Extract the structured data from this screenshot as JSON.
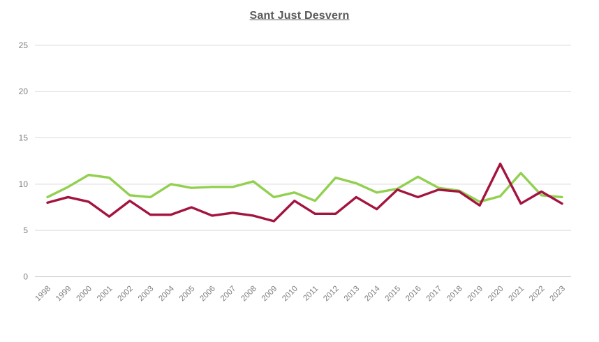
{
  "title": "Sant Just Desvern",
  "colors": {
    "title_text": "#595959",
    "axis_text": "#7f7f7f",
    "gridline": "#d9d9d9",
    "axis_line": "#c6c6c6",
    "series_green": "#92D050",
    "series_dark_red": "#A3143F"
  },
  "chart_data": {
    "type": "line",
    "title": "Sant Just Desvern",
    "xlabel": "",
    "ylabel": "",
    "ylim": [
      0,
      25
    ],
    "yticks": [
      0,
      5,
      10,
      15,
      20,
      25
    ],
    "grid": true,
    "legend": "none",
    "categories": [
      "1998",
      "1999",
      "2000",
      "2001",
      "2002",
      "2003",
      "2004",
      "2005",
      "2006",
      "2007",
      "2008",
      "2009",
      "2010",
      "2011",
      "2012",
      "2013",
      "2014",
      "2015",
      "2016",
      "2017",
      "2018",
      "2019",
      "2020",
      "2021",
      "2022",
      "2023"
    ],
    "series": [
      {
        "name": "green",
        "color": "#92D050",
        "values": [
          8.6,
          9.7,
          11.0,
          10.7,
          8.8,
          8.6,
          10.0,
          9.6,
          9.7,
          9.7,
          10.3,
          8.6,
          9.1,
          8.2,
          10.7,
          10.1,
          9.1,
          9.5,
          10.8,
          9.6,
          9.3,
          8.1,
          8.7,
          11.2,
          8.8,
          8.6
        ]
      },
      {
        "name": "dark-red",
        "color": "#A3143F",
        "values": [
          8.0,
          8.6,
          8.1,
          6.5,
          8.2,
          6.7,
          6.7,
          7.5,
          6.6,
          6.9,
          6.6,
          6.0,
          8.2,
          6.8,
          6.8,
          8.6,
          7.3,
          9.4,
          8.6,
          9.4,
          9.2,
          7.7,
          12.2,
          7.9,
          9.2,
          7.9
        ]
      }
    ]
  }
}
